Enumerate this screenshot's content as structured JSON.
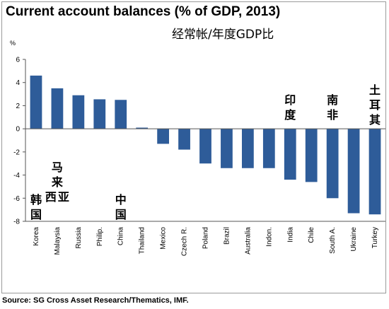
{
  "title": "Current account balances (% of GDP, 2013)",
  "subtitle": "经常帐/年度GDP比",
  "unit": "%",
  "source": "Source: SG Cross Asset Research/Thematics, IMF.",
  "colors": {
    "bar": "#2e5c99",
    "axis": "#555555",
    "frame": "#9a9a9a"
  },
  "annotations": [
    {
      "category": "Korea",
      "text": "韩国"
    },
    {
      "category": "Malaysia",
      "text": "马来西亚"
    },
    {
      "category": "China",
      "text": "中国"
    },
    {
      "category": "India",
      "text": "印度"
    },
    {
      "category": "South A.",
      "text": "南非"
    },
    {
      "category": "Turkey",
      "text": "土耳其"
    }
  ],
  "chart_data": {
    "type": "bar",
    "title": "Current account balances (% of GDP, 2013)",
    "ylabel": "%",
    "categories": [
      "Korea",
      "Malaysia",
      "Russia",
      "Philip.",
      "China",
      "Thailand",
      "Mexico",
      "Czech R.",
      "Poland",
      "Brazil",
      "Australia",
      "Indon.",
      "India",
      "Chile",
      "South A.",
      "Ukraine",
      "Turkey"
    ],
    "values": [
      4.6,
      3.5,
      2.9,
      2.55,
      2.5,
      0.1,
      -1.3,
      -1.8,
      -3.0,
      -3.4,
      -3.4,
      -3.4,
      -4.4,
      -4.6,
      -6.0,
      -7.3,
      -7.4
    ],
    "ylim": [
      -8,
      6
    ],
    "yticks": [
      6,
      4,
      2,
      0,
      -2,
      -4,
      -6,
      -8
    ],
    "grid": false,
    "legend": "none"
  }
}
